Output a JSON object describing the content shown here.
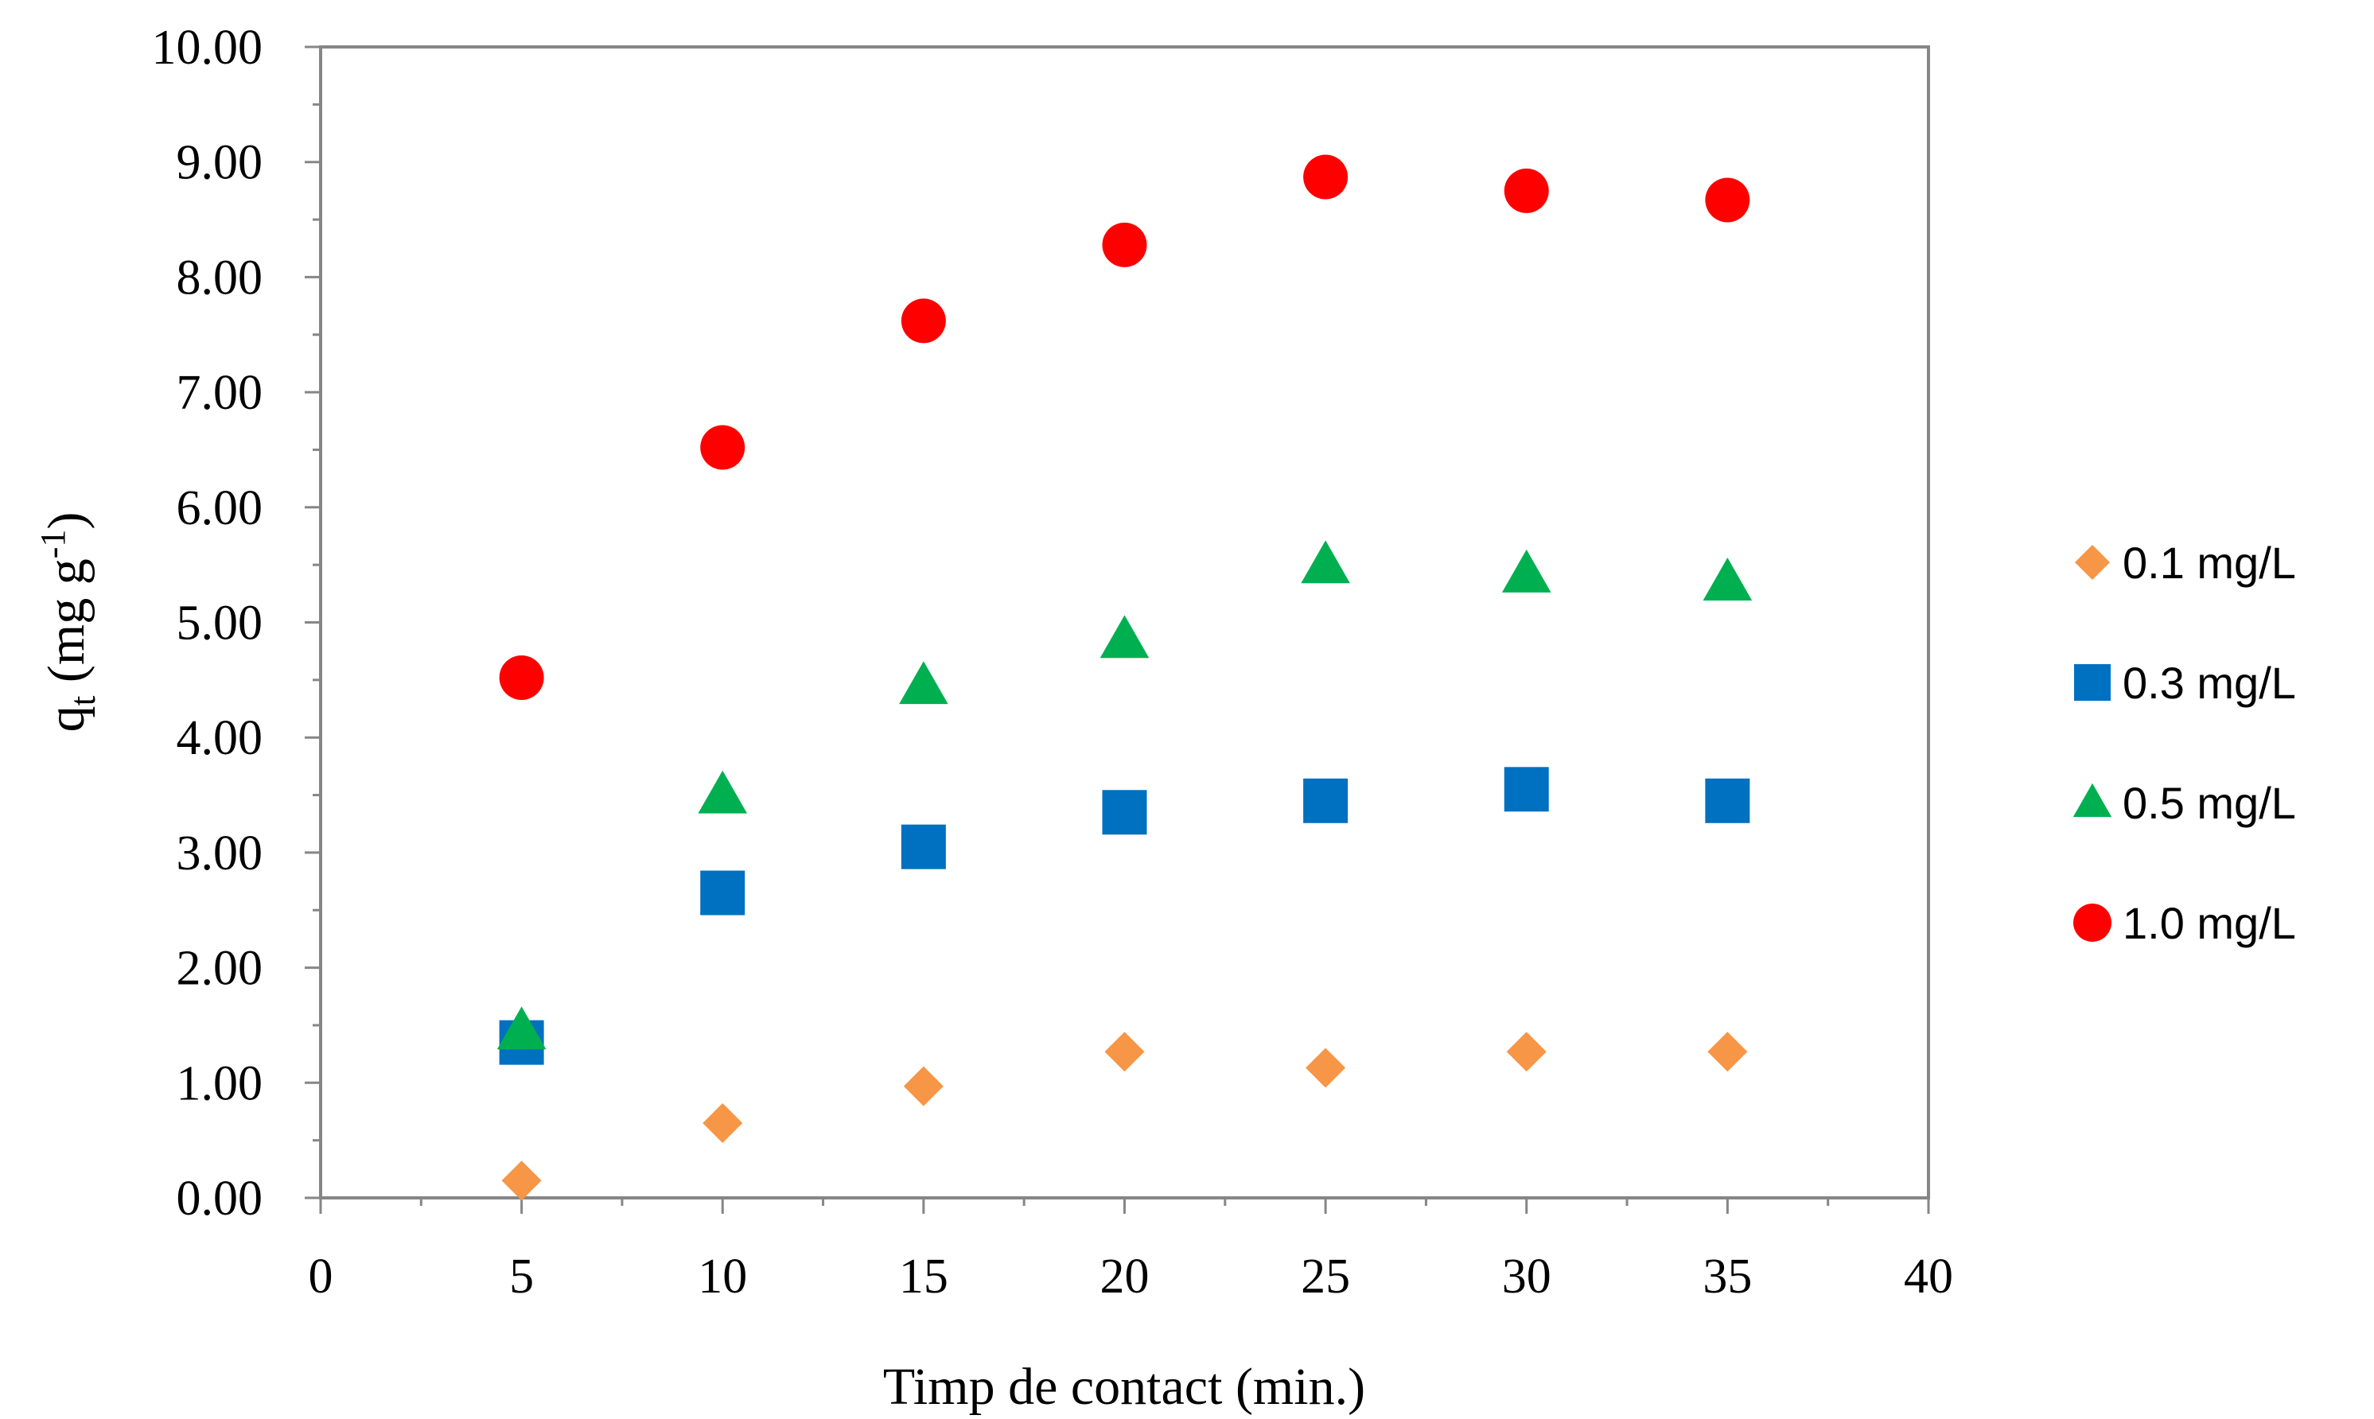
{
  "chart_data": {
    "type": "scatter",
    "title": "",
    "xlabel": "Timp de contact (min.)",
    "ylabel": {
      "main": "q",
      "sub": "t",
      "units": " (mg g",
      "sup": "-1",
      "close": ")"
    },
    "xlim": [
      0,
      40
    ],
    "ylim": [
      0,
      10
    ],
    "x_ticks": [
      "0",
      "5",
      "10",
      "15",
      "20",
      "25",
      "30",
      "35",
      "40"
    ],
    "y_ticks": [
      "0.00",
      "1.00",
      "2.00",
      "3.00",
      "4.00",
      "5.00",
      "6.00",
      "7.00",
      "8.00",
      "9.00",
      "10.00"
    ],
    "grid": false,
    "legend_position": "right",
    "series": [
      {
        "name": "0.1 mg/L",
        "marker": "diamond",
        "color": "#F79646",
        "x": [
          5,
          10,
          15,
          20,
          25,
          30,
          35
        ],
        "y": [
          0.15,
          0.65,
          0.97,
          1.27,
          1.13,
          1.27,
          1.27
        ]
      },
      {
        "name": "0.3 mg/L",
        "marker": "square",
        "color": "#0070C0",
        "x": [
          5,
          10,
          15,
          20,
          25,
          30,
          35
        ],
        "y": [
          1.35,
          2.65,
          3.05,
          3.35,
          3.45,
          3.55,
          3.45
        ]
      },
      {
        "name": "0.5 mg/L",
        "marker": "triangle",
        "color": "#00B050",
        "x": [
          5,
          10,
          15,
          20,
          25,
          30,
          35
        ],
        "y": [
          1.45,
          3.5,
          4.45,
          4.85,
          5.5,
          5.42,
          5.35
        ]
      },
      {
        "name": "1.0 mg/L",
        "marker": "circle",
        "color": "#FF0000",
        "x": [
          5,
          10,
          15,
          20,
          25,
          30,
          35
        ],
        "y": [
          4.52,
          6.52,
          7.62,
          8.28,
          8.87,
          8.75,
          8.67
        ]
      }
    ]
  }
}
